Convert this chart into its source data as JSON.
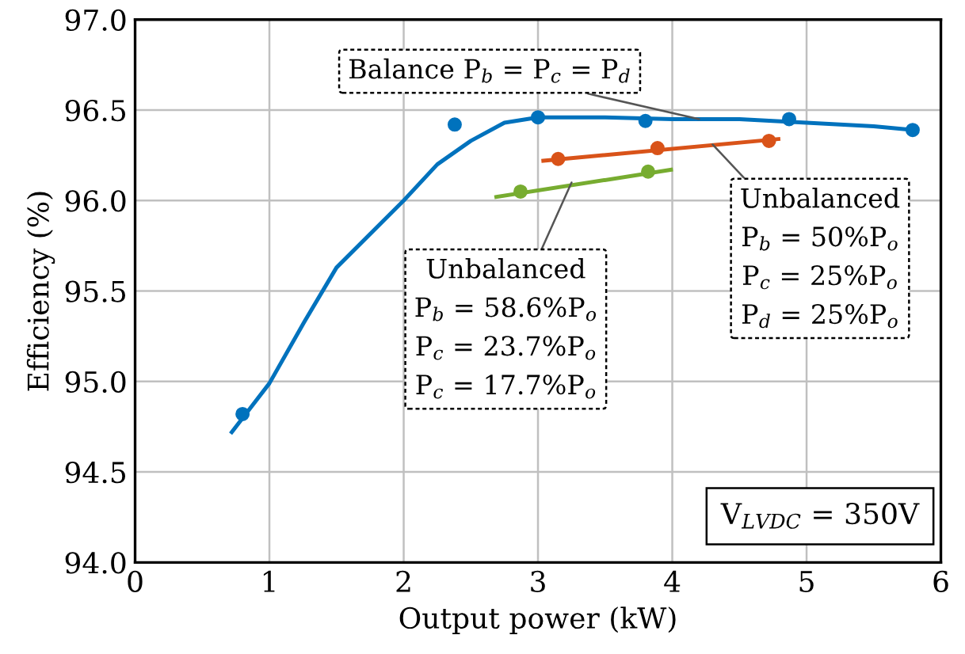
{
  "chart_data": {
    "type": "scatter",
    "xlabel": "Output power (kW)",
    "ylabel": "Efficiency (%)",
    "xlim": [
      0,
      6
    ],
    "ylim": [
      94,
      97
    ],
    "xticks": [
      0,
      1,
      2,
      3,
      4,
      5,
      6
    ],
    "yticks": [
      {
        "value": 94,
        "label": "94.0"
      },
      94.5,
      {
        "value": 95,
        "label": "95.0"
      },
      95.5,
      {
        "value": 96,
        "label": "96.0"
      },
      96.5,
      {
        "value": 97,
        "label": "97.0"
      }
    ],
    "grid": true,
    "series": [
      {
        "type": "line",
        "color": "#0072bd",
        "marker": "none",
        "x": [
          0.72,
          1,
          1.26,
          1.5,
          2,
          2.25,
          2.5,
          2.75,
          3,
          3.5,
          4,
          4.5,
          5,
          5.5,
          5.8
        ],
        "values": [
          94.72,
          94.99,
          95.33,
          95.63,
          96.0,
          96.2,
          96.33,
          96.43,
          96.46,
          96.46,
          96.45,
          96.45,
          96.43,
          96.41,
          96.39
        ]
      },
      {
        "type": "scatter",
        "color": "#0072bd",
        "marker": "circle",
        "x": [
          0.8,
          2.38,
          3.0,
          3.8,
          4.87,
          5.79
        ],
        "values": [
          94.82,
          96.42,
          96.46,
          96.44,
          96.45,
          96.39
        ]
      },
      {
        "type": "line",
        "color": "#d95319",
        "marker": "none",
        "x": [
          3.04,
          4.79
        ],
        "values": [
          96.22,
          96.34
        ]
      },
      {
        "type": "scatter",
        "color": "#d95319",
        "marker": "circle",
        "x": [
          3.15,
          3.89,
          4.72
        ],
        "values": [
          96.23,
          96.29,
          96.33
        ]
      },
      {
        "type": "line",
        "color": "#77ac30",
        "marker": "none",
        "x": [
          2.69,
          3.99
        ],
        "values": [
          96.02,
          96.17
        ]
      },
      {
        "type": "scatter",
        "color": "#77ac30",
        "marker": "circle",
        "x": [
          2.87,
          3.82
        ],
        "values": [
          96.05,
          96.16
        ]
      }
    ],
    "annotations": [
      "V$_{LVDC}$ = 350V",
      {
        "text": "Balance P$_{b}$ = P$_{c}$ = P$_{d}$",
        "x": 4.2,
        "y": 96.45
      },
      {
        "text": "Unbalanced",
        "x": 4.3,
        "y": 96.31
      },
      "P$_{b}$ = 50%P$_{o}$",
      "P$_{c}$ = 25%P$_{o}$",
      "P$_{d}$ = 25%P$_{o}$",
      {
        "text": "Unbalanced",
        "x": 3.25,
        "y": 96.1
      },
      "P$_{b}$ = 58.6%P$_{o}$",
      "P$_{c}$ = 23.7%P$_{o}$",
      "P$_{c}$ = 17.7%P$_{o}$"
    ]
  }
}
